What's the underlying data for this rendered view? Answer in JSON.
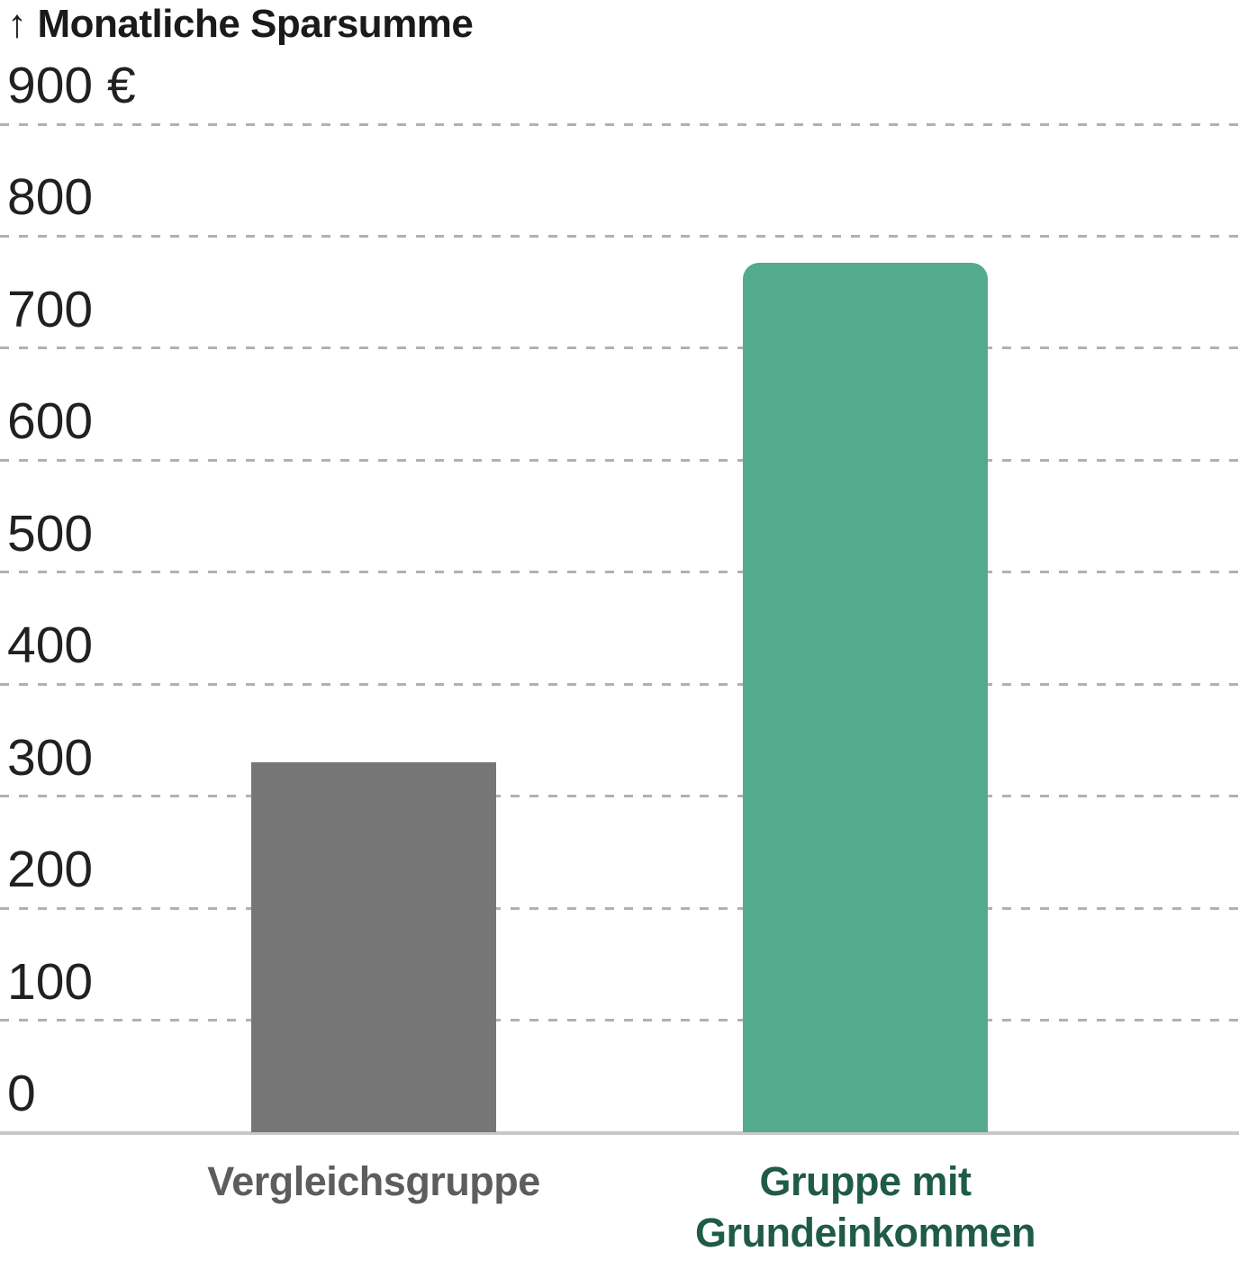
{
  "header": {
    "arrow": "↑",
    "title": "Monatliche Sparsumme"
  },
  "chart_data": {
    "type": "bar",
    "title": "Monatliche Sparsumme",
    "categories": [
      "Vergleichsgruppe",
      "Gruppe mit Grundeinkommen"
    ],
    "values": [
      330,
      776
    ],
    "ylim": [
      0,
      900
    ],
    "ytick_step": 100,
    "ytick_labels": [
      "900 €",
      "800",
      "700",
      "600",
      "500",
      "400",
      "300",
      "200",
      "100",
      "0"
    ],
    "xlabel": "",
    "ylabel": "Monatliche Sparsumme (€)",
    "grid": "horizontal-dashed",
    "legend": "none",
    "bar_colors": [
      "#767676",
      "#54aa8c"
    ],
    "category_label_colors": [
      "#5d5d5d",
      "#1f5b45"
    ]
  },
  "colors": {
    "background": "#ffffff",
    "gridline": "#b1b1b1",
    "axis_line": "#c8c8c8",
    "title_text": "#1a1a1a",
    "tick_text": "#212121",
    "bar_comparison": "#767676",
    "bar_basic_income": "#54aa8c",
    "label_comparison": "#5d5d5d",
    "label_basic_income": "#1f5b45"
  }
}
